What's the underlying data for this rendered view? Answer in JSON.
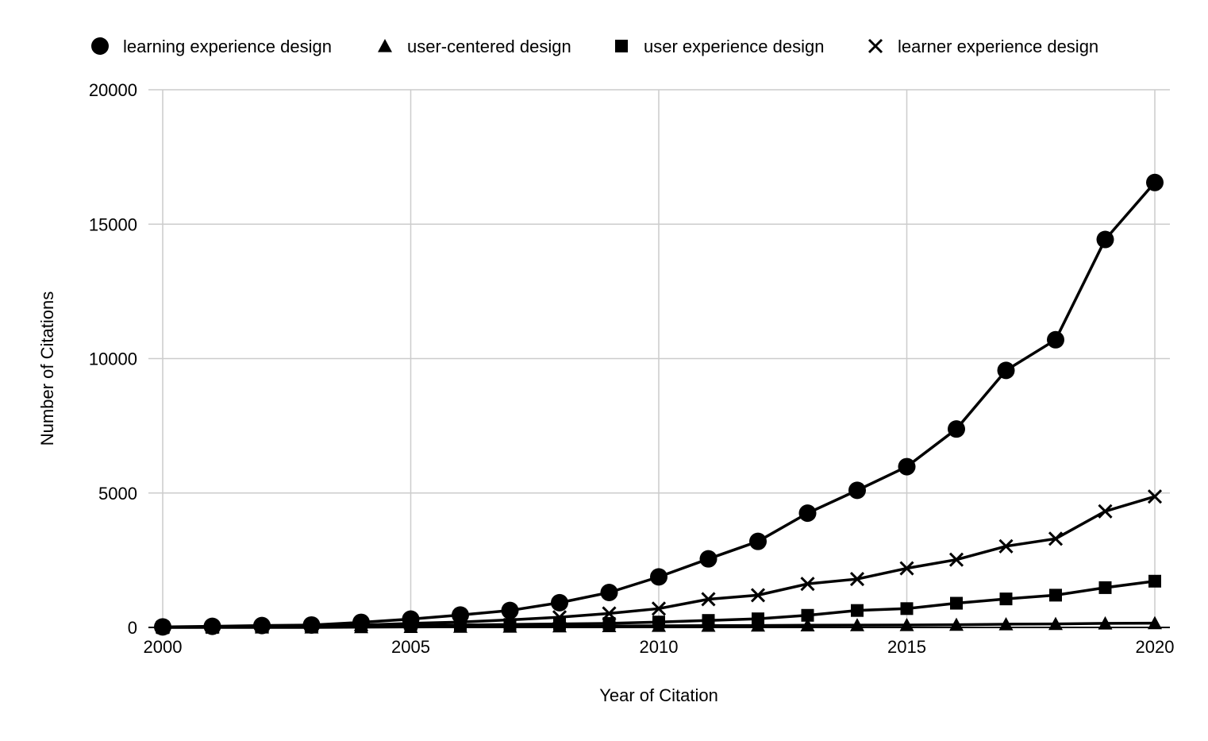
{
  "chart_data": {
    "type": "line",
    "title": "",
    "xlabel": "Year of Citation",
    "ylabel": "Number of Citations",
    "x": [
      2000,
      2001,
      2002,
      2003,
      2004,
      2005,
      2006,
      2007,
      2008,
      2009,
      2010,
      2011,
      2012,
      2013,
      2014,
      2015,
      2016,
      2017,
      2018,
      2019,
      2020
    ],
    "xlim": [
      2000,
      2020
    ],
    "ylim": [
      0,
      20000
    ],
    "x_ticks": [
      "2000",
      "2005",
      "2010",
      "2015",
      "2020"
    ],
    "y_ticks": [
      "0",
      "5000",
      "10000",
      "15000",
      "20000"
    ],
    "x_tick_values": [
      2000,
      2005,
      2010,
      2015,
      2020
    ],
    "y_tick_values": [
      0,
      5000,
      10000,
      15000,
      20000
    ],
    "grid": true,
    "legend_position": "top",
    "series": [
      {
        "name": "learning experience design",
        "marker": "circle",
        "values": [
          20,
          40,
          70,
          90,
          190,
          310,
          460,
          630,
          920,
          1300,
          1880,
          2550,
          3200,
          4250,
          5100,
          5980,
          7380,
          9560,
          10700,
          14430,
          16550
        ]
      },
      {
        "name": "user-centered design",
        "marker": "triangle",
        "values": [
          0,
          0,
          0,
          0,
          10,
          20,
          25,
          30,
          40,
          50,
          60,
          65,
          70,
          80,
          85,
          90,
          100,
          120,
          130,
          150,
          160
        ]
      },
      {
        "name": "user experience design",
        "marker": "square",
        "values": [
          5,
          10,
          20,
          30,
          50,
          70,
          90,
          110,
          130,
          150,
          200,
          260,
          320,
          450,
          630,
          700,
          900,
          1060,
          1200,
          1480,
          1720
        ]
      },
      {
        "name": "learner experience design",
        "marker": "x",
        "values": [
          10,
          20,
          40,
          60,
          90,
          150,
          200,
          280,
          380,
          520,
          700,
          1050,
          1200,
          1620,
          1800,
          2200,
          2520,
          3020,
          3300,
          4320,
          4870
        ]
      }
    ]
  }
}
